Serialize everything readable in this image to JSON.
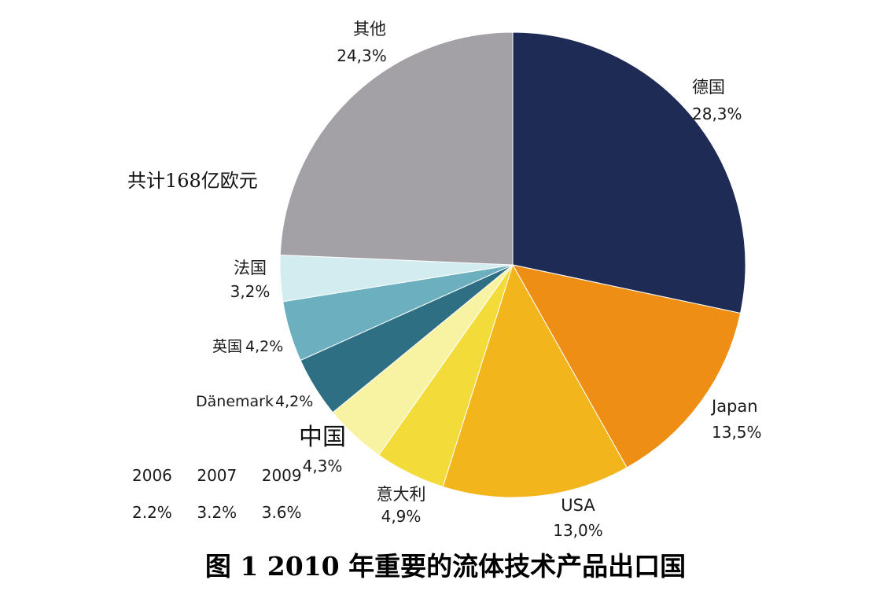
{
  "chart_data": {
    "type": "pie",
    "title": "",
    "unit": "%",
    "slices": [
      {
        "label": "德国",
        "value": 28.3,
        "value_label": "28,3%",
        "color": "#1e2c55"
      },
      {
        "label": "Japan",
        "value": 13.5,
        "value_label": "13,5%",
        "color": "#ee8e14"
      },
      {
        "label": "USA",
        "value": 13.0,
        "value_label": "13,0%",
        "color": "#f2b51c"
      },
      {
        "label": "意大利",
        "value": 4.9,
        "value_label": "4,9%",
        "color": "#f3dc3a"
      },
      {
        "label": "中国",
        "value": 4.3,
        "value_label": "4,3%",
        "color": "#f8f3a2"
      },
      {
        "label": "Dänemark",
        "value": 4.2,
        "value_label": "4,2%",
        "color": "#2f6f84"
      },
      {
        "label": "英国",
        "value": 4.2,
        "value_label": "4,2%",
        "color": "#6cb0c0"
      },
      {
        "label": "法国",
        "value": 3.2,
        "value_label": "3,2%",
        "color": "#d3ecf0"
      },
      {
        "label": "其他",
        "value": 24.3,
        "value_label": "24,3%",
        "color": "#a3a1a5"
      }
    ]
  },
  "annotations": {
    "total": "共计168亿欧元",
    "china_years": [
      "2006",
      "2007",
      "2009"
    ],
    "china_shares": [
      "2.2%",
      "3.2%",
      "3.6%"
    ]
  },
  "caption": "图 1 2010 年重要的流体技术产品出口国"
}
